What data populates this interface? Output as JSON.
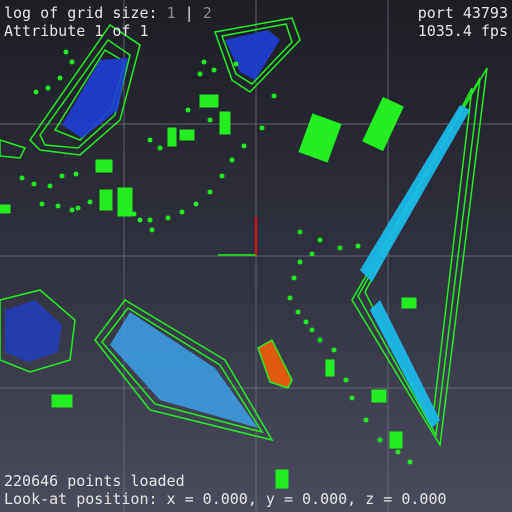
{
  "hud": {
    "grid_label": "log of grid size:",
    "grid_value_1": "1",
    "grid_sep": "|",
    "grid_value_2": "2",
    "attribute": "Attribute 1 of 1",
    "port": "port 43793",
    "fps": "1035.4 fps",
    "points_loaded": "220646 points loaded",
    "look_at": "Look-at position: x = 0.000, y = 0.000, z = 0.000"
  },
  "scene": {
    "background": "#2a2b36",
    "grid_color": "#6e7080",
    "bbox_color": "#22ee22",
    "axis_x_color": "#22cc22",
    "axis_y_color": "#dd1111",
    "cloud_colors": [
      "#1f3fd8",
      "#1ab8e8",
      "#3c9be0",
      "#e05a10",
      "#f0c020"
    ]
  }
}
